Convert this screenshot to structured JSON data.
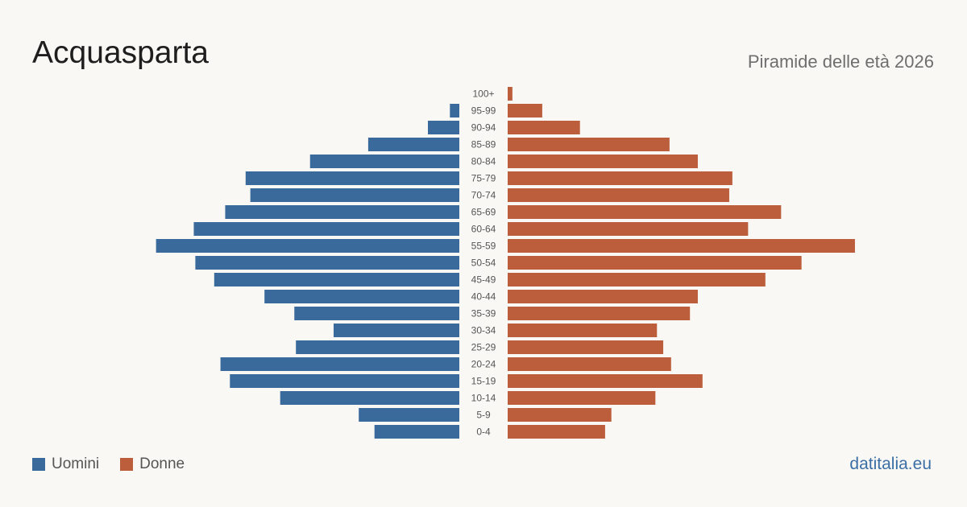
{
  "header": {
    "title": "Acquasparta",
    "subtitle": "Piramide delle età 2026"
  },
  "footer": {
    "brand": "datitalia.eu"
  },
  "colors": {
    "men": "#3a6a9c",
    "women": "#bc5d3c",
    "tick_text": "#555555"
  },
  "chart_data": {
    "type": "bar",
    "orientation": "horizontal-population-pyramid",
    "categories": [
      "100+",
      "95-99",
      "90-94",
      "85-89",
      "80-84",
      "75-79",
      "70-74",
      "65-69",
      "60-64",
      "55-59",
      "50-54",
      "45-49",
      "40-44",
      "35-39",
      "30-34",
      "25-29",
      "20-24",
      "15-19",
      "10-14",
      "5-9",
      "0-4"
    ],
    "series": [
      {
        "name": "Uomini",
        "values": [
          0,
          6,
          20,
          58,
          95,
          136,
          133,
          149,
          169,
          193,
          168,
          156,
          124,
          105,
          80,
          104,
          152,
          146,
          114,
          64,
          54
        ]
      },
      {
        "name": "Donne",
        "values": [
          3,
          22,
          46,
          103,
          121,
          143,
          141,
          174,
          153,
          221,
          187,
          164,
          121,
          116,
          95,
          99,
          104,
          124,
          94,
          66,
          62
        ]
      }
    ],
    "legend": "bottom-left",
    "grid": false
  }
}
